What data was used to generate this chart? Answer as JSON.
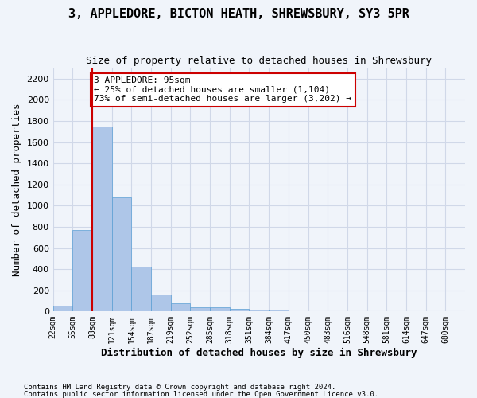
{
  "title1": "3, APPLEDORE, BICTON HEATH, SHREWSBURY, SY3 5PR",
  "title2": "Size of property relative to detached houses in Shrewsbury",
  "xlabel": "Distribution of detached houses by size in Shrewsbury",
  "ylabel": "Number of detached properties",
  "footer1": "Contains HM Land Registry data © Crown copyright and database right 2024.",
  "footer2": "Contains public sector information licensed under the Open Government Licence v3.0.",
  "bar_values": [
    55,
    770,
    1750,
    1075,
    420,
    160,
    80,
    43,
    40,
    25,
    20,
    15,
    0,
    0,
    0,
    0,
    0,
    0,
    0,
    0
  ],
  "bin_labels": [
    "22sqm",
    "55sqm",
    "88sqm",
    "121sqm",
    "154sqm",
    "187sqm",
    "219sqm",
    "252sqm",
    "285sqm",
    "318sqm",
    "351sqm",
    "384sqm",
    "417sqm",
    "450sqm",
    "483sqm",
    "516sqm",
    "548sqm",
    "581sqm",
    "614sqm",
    "647sqm",
    "680sqm"
  ],
  "bar_color": "#aec6e8",
  "bar_edge_color": "#5a9fd4",
  "grid_color": "#d0d8e8",
  "background_color": "#f0f4fa",
  "vline_color": "#cc0000",
  "annotation_text": "3 APPLEDORE: 95sqm\n← 25% of detached houses are smaller (1,104)\n73% of semi-detached houses are larger (3,202) →",
  "annotation_box_color": "#ffffff",
  "annotation_box_edge": "#cc0000",
  "ylim": [
    0,
    2300
  ],
  "yticks": [
    0,
    200,
    400,
    600,
    800,
    1000,
    1200,
    1400,
    1600,
    1800,
    2000,
    2200
  ]
}
